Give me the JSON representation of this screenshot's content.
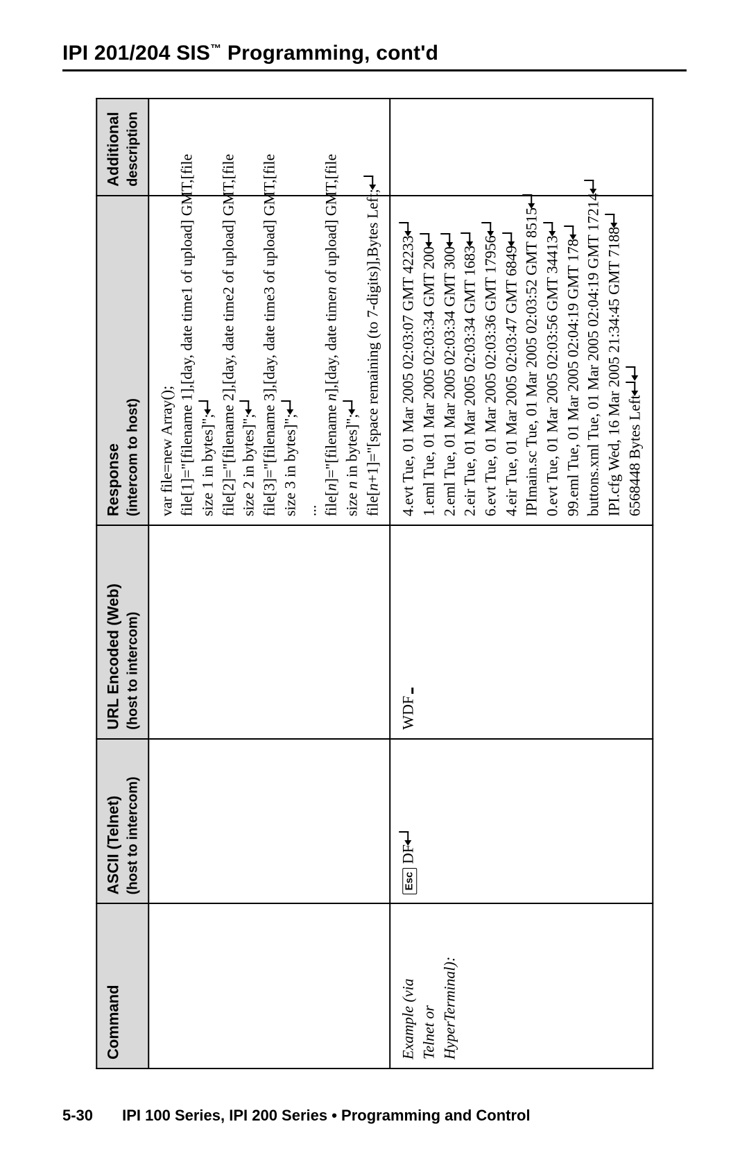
{
  "page": {
    "title_a": "IPI 201/204 SIS",
    "title_tm": "™",
    "title_b": " Programming, cont'd",
    "footer_page": "5-30",
    "footer_text": "IPI 100 Series, IPI 200 Series • Programming and Control"
  },
  "headers": {
    "cmd": "Command",
    "ascii_a": "ASCII (Telnet)",
    "ascii_b": "(host to intercom)",
    "url_a": "URL Encoded (Web)",
    "url_b": "(host to intercom)",
    "resp_a": "Response",
    "resp_b": "(intercom to host)",
    "desc_a": "Additional",
    "desc_b": "description"
  },
  "example": {
    "label_a": "Example (via",
    "label_b": "Telnet or",
    "label_c": "HyperTerminal):",
    "esc": "Esc",
    "ascii_after": "DF",
    "url": "WDF"
  },
  "response_template": {
    "l0": "var file=new Array();",
    "l1a": "file[1]=\"[filename 1],[day, date time1 of upload] GMT,[file",
    "l1b": "size 1 in bytes]\";",
    "l2a": "file[2]=\"[filename 2],[day, date time2 of upload] GMT,[file",
    "l2b": "size 2 in bytes]\";",
    "l3a": "file[3]=\"[filename 3],[day, date time3 of upload] GMT,[file",
    "l3b": "size 3 in bytes]\";",
    "dots": "...",
    "lna": "file[",
    "lnb": "]=\"[filename ",
    "lnc": "],[day, date time",
    "lnd": " of upload] GMT,[file",
    "lne": "size ",
    "lnf": " in bytes]\";",
    "lp1a": "file[",
    "lp1b": "+1]=\"[space remaining (to 7-digits)],Bytes Left;"
  },
  "n": "n",
  "files": [
    "4.evt Tue, 01 Mar 2005 02:03:07 GMT 42233",
    "1.eml Tue, 01 Mar 2005 02:03:34 GMT 200",
    "2.eml Tue, 01 Mar 2005 02:03:34 GMT 300",
    "2.eir Tue, 01 Mar 2005 02:03:34 GMT 1683",
    "6.evt Tue, 01 Mar 2005 02:03:36 GMT 17956",
    "4.eir Tue, 01 Mar 2005 02:03:47 GMT 6849",
    "IPImain.sc Tue, 01 Mar 2005 02:03:52 GMT 8515",
    "0.evt Tue, 01 Mar 2005 02:03:56 GMT 34413",
    "99.eml Tue, 01 Mar 2005 02:04:19 GMT 178",
    "buttons.xml Tue, 01 Mar 2005 02:04:19 GMT 17214",
    "IPI.cfg Wed, 16 Mar 2005 21:34:45 GMT 7188"
  ],
  "bytes_left": "6568448 Bytes Left"
}
